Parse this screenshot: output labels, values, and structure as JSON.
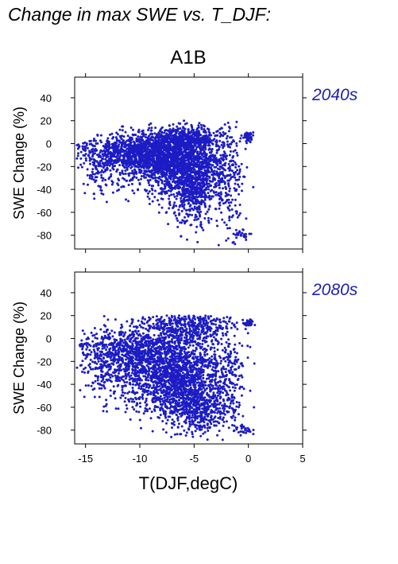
{
  "figure": {
    "title": "Change in max SWE vs. T_DJF:",
    "scenario": "A1B",
    "xlabel": "T(DJF,degC)",
    "point_color": "#1c1cc4",
    "period_color": "#2020b0"
  },
  "chart_data": [
    {
      "type": "scatter",
      "panel": "2040s",
      "ylabel": "SWE Change (%)",
      "xlim": [
        -16,
        5
      ],
      "ylim": [
        -92,
        58
      ],
      "xticks": [
        -15,
        -10,
        -5,
        0,
        5
      ],
      "yticks": [
        40,
        20,
        0,
        -20,
        -40,
        -60,
        -80
      ],
      "grid": false,
      "clusters": [
        {
          "x": -10.5,
          "xs": 2.6,
          "y": -8,
          "ys": 7,
          "n": 700
        },
        {
          "x": -8,
          "xs": 2.4,
          "y": -15,
          "ys": 12,
          "n": 1100
        },
        {
          "x": -5.5,
          "xs": 1.8,
          "y": -22,
          "ys": 16,
          "n": 900
        },
        {
          "x": -5,
          "xs": 0.9,
          "y": -48,
          "ys": 14,
          "n": 280
        },
        {
          "x": -6,
          "xs": 1.8,
          "y": 4,
          "ys": 5,
          "n": 500
        },
        {
          "x": -13.5,
          "xs": 0.8,
          "y": -22,
          "ys": 12,
          "n": 110
        },
        {
          "x": -1.8,
          "xs": 0.7,
          "y": -30,
          "ys": 25,
          "n": 160
        },
        {
          "x": 0,
          "xs": 0.25,
          "y": 6,
          "ys": 2,
          "n": 40
        },
        {
          "x": -0.5,
          "xs": 0.4,
          "y": -79,
          "ys": 2,
          "n": 25
        },
        {
          "x": -15.2,
          "xs": 0.5,
          "y": -3,
          "ys": 2,
          "n": 20
        }
      ]
    },
    {
      "type": "scatter",
      "panel": "2080s",
      "ylabel": "SWE Change (%)",
      "xlim": [
        -16,
        5
      ],
      "ylim": [
        -92,
        58
      ],
      "xticks": [
        -15,
        -10,
        -5,
        0,
        5
      ],
      "yticks": [
        40,
        20,
        0,
        -20,
        -40,
        -60,
        -80
      ],
      "grid": false,
      "clusters": [
        {
          "x": -11,
          "xs": 2.3,
          "y": -12,
          "ys": 12,
          "n": 650
        },
        {
          "x": -8,
          "xs": 2.4,
          "y": -28,
          "ys": 18,
          "n": 1100
        },
        {
          "x": -5.5,
          "xs": 1.8,
          "y": -40,
          "ys": 18,
          "n": 900
        },
        {
          "x": -4.5,
          "xs": 1.4,
          "y": -65,
          "ys": 10,
          "n": 280
        },
        {
          "x": -5.5,
          "xs": 2.0,
          "y": 12,
          "ys": 9,
          "n": 500
        },
        {
          "x": -13.5,
          "xs": 0.8,
          "y": -28,
          "ys": 14,
          "n": 110
        },
        {
          "x": -1.8,
          "xs": 0.7,
          "y": -35,
          "ys": 25,
          "n": 160
        },
        {
          "x": 0,
          "xs": 0.25,
          "y": 13,
          "ys": 1.5,
          "n": 40
        },
        {
          "x": -0.5,
          "xs": 0.4,
          "y": -80,
          "ys": 2,
          "n": 25
        },
        {
          "x": -15.3,
          "xs": 0.5,
          "y": -5,
          "ys": 2,
          "n": 20
        }
      ]
    }
  ]
}
